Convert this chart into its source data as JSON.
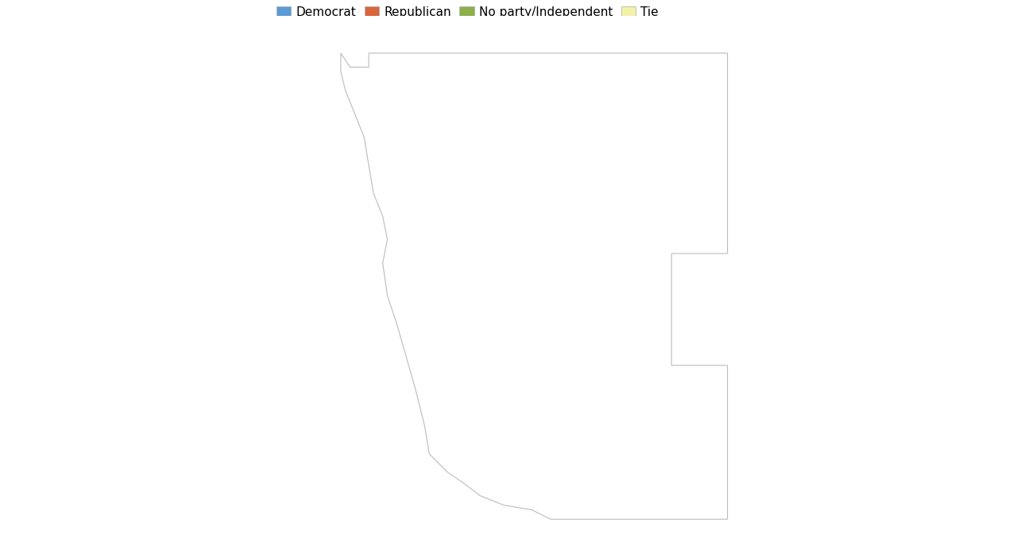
{
  "legend_items": [
    {
      "label": "Democrat",
      "color": "#5B9BD5"
    },
    {
      "label": "Republican",
      "color": "#D9653B"
    },
    {
      "label": "No party/Independent",
      "color": "#8DB04A"
    },
    {
      "label": "Tie",
      "color": "#F2F2AA"
    }
  ],
  "background_color": "#FFFFFF",
  "democrat_color": "#5B9BD5",
  "republican_color": "#D9653B",
  "independent_color": "#8DB04A",
  "tie_color": "#F2F2AA",
  "figsize": [
    12.8,
    6.72
  ],
  "dpi": 100,
  "legend_fontsize": 11
}
